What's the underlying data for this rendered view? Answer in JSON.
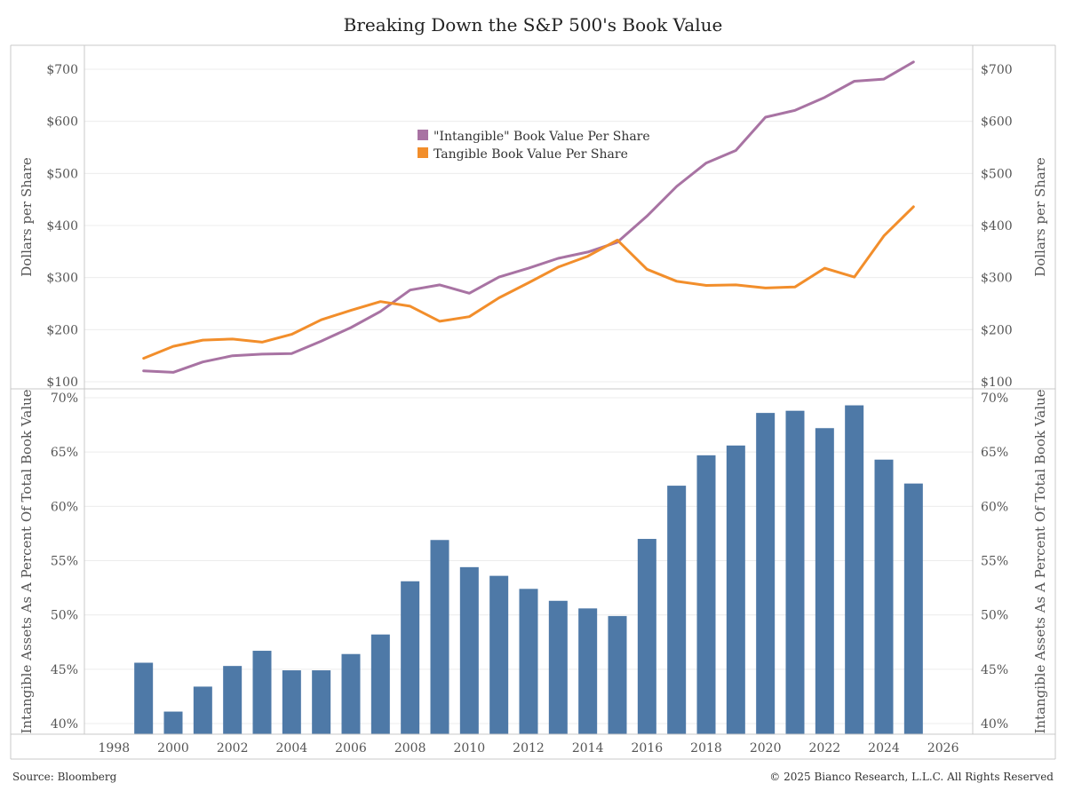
{
  "title": "Breaking Down the S&P 500's Book Value",
  "source": "Source: Bloomberg",
  "copyright": "© 2025 Bianco Research, L.L.C. All Rights Reserved",
  "colors": {
    "intangible": "#a873a3",
    "tangible": "#f28e2b",
    "bars": "#4e79a7",
    "grid": "#ececec",
    "frame": "#c8c8c8"
  },
  "chart_data": [
    {
      "type": "line",
      "ylabel": "Dollars per Share",
      "y_ticks": [
        "$100",
        "$200",
        "$300",
        "$400",
        "$500",
        "$600",
        "$700"
      ],
      "ylim": [
        90,
        730
      ],
      "xlim": [
        1997,
        2027
      ],
      "legend_position": "center",
      "series": [
        {
          "name": "\"Intangible\" Book Value Per Share",
          "x": [
            1999,
            2000,
            2001,
            2002,
            2003,
            2004,
            2005,
            2006,
            2007,
            2008,
            2009,
            2010,
            2011,
            2012,
            2013,
            2014,
            2015,
            2016,
            2017,
            2018,
            2019,
            2020,
            2021,
            2022,
            2023,
            2024,
            2025
          ],
          "values": [
            121,
            118,
            138,
            150,
            153,
            154,
            178,
            204,
            235,
            276,
            286,
            270,
            301,
            318,
            337,
            349,
            368,
            418,
            475,
            520,
            544,
            608,
            621,
            646,
            677,
            681,
            714
          ]
        },
        {
          "name": "Tangible Book Value Per Share",
          "x": [
            1999,
            2000,
            2001,
            2002,
            2003,
            2004,
            2005,
            2006,
            2007,
            2008,
            2009,
            2010,
            2011,
            2012,
            2013,
            2014,
            2015,
            2016,
            2017,
            2018,
            2019,
            2020,
            2021,
            2022,
            2023,
            2024,
            2025
          ],
          "values": [
            145,
            168,
            180,
            182,
            176,
            191,
            219,
            237,
            254,
            245,
            216,
            225,
            261,
            290,
            320,
            341,
            372,
            316,
            293,
            285,
            286,
            280,
            282,
            318,
            301,
            380,
            436
          ]
        }
      ]
    },
    {
      "type": "bar",
      "ylabel": "Intangible Assets As A Percent Of Total Book Value",
      "y_ticks": [
        "40%",
        "45%",
        "50%",
        "55%",
        "60%",
        "65%",
        "70%"
      ],
      "ylim": [
        39.0,
        70.5
      ],
      "xlim": [
        1997,
        2027
      ],
      "x_ticks": [
        "1998",
        "2000",
        "2002",
        "2004",
        "2006",
        "2008",
        "2010",
        "2012",
        "2014",
        "2016",
        "2018",
        "2020",
        "2022",
        "2024",
        "2026"
      ],
      "categories": [
        1999,
        2000,
        2001,
        2002,
        2003,
        2004,
        2005,
        2006,
        2007,
        2008,
        2009,
        2010,
        2011,
        2012,
        2013,
        2014,
        2015,
        2016,
        2017,
        2018,
        2019,
        2020,
        2021,
        2022,
        2023,
        2024,
        2025
      ],
      "values": [
        45.6,
        41.1,
        43.4,
        45.3,
        46.7,
        44.9,
        44.9,
        46.4,
        48.2,
        53.1,
        56.9,
        54.4,
        53.6,
        52.4,
        51.3,
        50.6,
        49.9,
        57.0,
        61.9,
        64.7,
        65.6,
        68.6,
        68.8,
        67.2,
        69.3,
        64.3,
        62.1
      ]
    }
  ]
}
